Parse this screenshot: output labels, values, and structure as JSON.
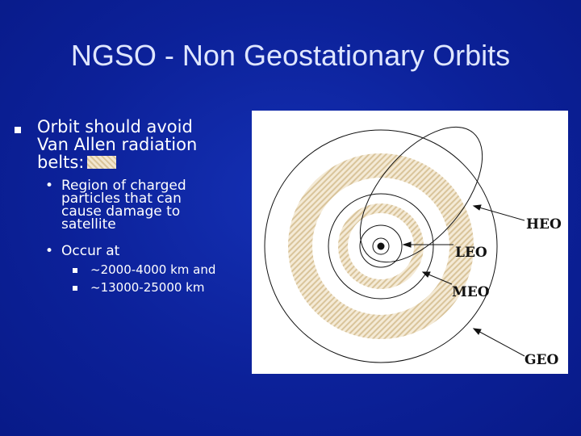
{
  "slide": {
    "title": "NGSO - Non Geostationary Orbits",
    "bullet": {
      "line1": "Orbit should avoid",
      "line2": "Van Allen radiation",
      "line3": "belts:"
    },
    "sub1": {
      "line1": "Region of charged",
      "line2": "particles that can",
      "line3": "cause damage to",
      "line4": "satellite"
    },
    "sub2": "Occur at",
    "sub2_items": [
      "~2000-4000 km and",
      "~13000-25000 km"
    ]
  },
  "diagram": {
    "labels": {
      "heo": "HEO",
      "leo": "LEO",
      "meo": "MEO",
      "geo": "GEO"
    },
    "belt_color": "#d9c49a",
    "line_color": "#111111"
  }
}
